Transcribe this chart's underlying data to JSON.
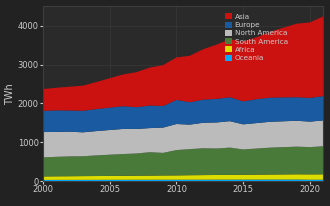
{
  "years": [
    2000,
    2001,
    2002,
    2003,
    2004,
    2005,
    2006,
    2007,
    2008,
    2009,
    2010,
    2011,
    2012,
    2013,
    2014,
    2015,
    2016,
    2017,
    2018,
    2019,
    2020,
    2021
  ],
  "series": {
    "Oceania": [
      35,
      36,
      36,
      37,
      37,
      38,
      38,
      39,
      39,
      40,
      40,
      41,
      41,
      42,
      42,
      43,
      43,
      44,
      44,
      45,
      40,
      40
    ],
    "Africa": [
      90,
      92,
      94,
      96,
      98,
      100,
      102,
      105,
      108,
      110,
      112,
      115,
      118,
      120,
      123,
      125,
      128,
      130,
      133,
      135,
      138,
      140
    ],
    "South America": [
      490,
      500,
      510,
      510,
      530,
      545,
      560,
      570,
      600,
      580,
      650,
      670,
      690,
      680,
      700,
      650,
      670,
      690,
      700,
      710,
      700,
      720
    ],
    "North America": [
      650,
      640,
      635,
      615,
      625,
      635,
      645,
      630,
      620,
      650,
      670,
      630,
      655,
      670,
      680,
      645,
      655,
      665,
      665,
      665,
      655,
      665
    ],
    "Europe": [
      545,
      555,
      545,
      555,
      565,
      575,
      585,
      560,
      580,
      555,
      620,
      575,
      595,
      605,
      615,
      590,
      615,
      620,
      615,
      605,
      610,
      625
    ],
    "Asia": [
      560,
      580,
      610,
      645,
      695,
      755,
      815,
      900,
      975,
      1050,
      1090,
      1195,
      1295,
      1395,
      1490,
      1540,
      1590,
      1690,
      1790,
      1890,
      1940,
      2050
    ]
  },
  "colors": {
    "Oceania": "#00aaff",
    "Africa": "#dddd00",
    "South America": "#4a7a3a",
    "North America": "#bbbbbb",
    "Europe": "#1a5aa0",
    "Asia": "#cc1111"
  },
  "ylabel": "TWh",
  "ylim": [
    0,
    4500
  ],
  "xlim": [
    2000,
    2021
  ],
  "yticks": [
    0,
    1000,
    2000,
    3000,
    4000
  ],
  "xticks": [
    2000,
    2005,
    2010,
    2015,
    2020
  ],
  "bg_color": "#222222",
  "axes_bg": "#2a2a2a",
  "grid_color": "#3d3d3d",
  "text_color": "#cccccc",
  "legend_order": [
    "Asia",
    "Europe",
    "North America",
    "South America",
    "Africa",
    "Oceania"
  ]
}
